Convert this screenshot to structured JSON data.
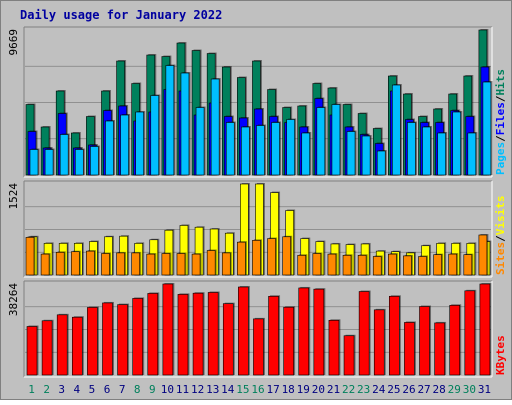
{
  "chart_data": {
    "type": "bar",
    "title": "Daily usage for January 2022",
    "categories": [
      "1",
      "2",
      "3",
      "4",
      "5",
      "6",
      "7",
      "8",
      "9",
      "10",
      "11",
      "12",
      "13",
      "14",
      "15",
      "16",
      "17",
      "18",
      "19",
      "20",
      "21",
      "22",
      "23",
      "24",
      "25",
      "26",
      "27",
      "28",
      "29",
      "30",
      "31"
    ],
    "weekend_days": [
      "1",
      "2",
      "8",
      "9",
      "15",
      "16",
      "22",
      "23",
      "29",
      "30"
    ],
    "panels": [
      {
        "id": "hits-files-pages",
        "ymax_label": "9669",
        "ymax": 9669,
        "gridlines": [
          0.25,
          0.5,
          0.75
        ],
        "legend": [
          "Pages",
          "/",
          "Files",
          "/",
          "Hits"
        ],
        "series": [
          {
            "name": "Hits",
            "color": "#00805c",
            "values": [
              4700,
              3200,
              5600,
              2800,
              3900,
              5600,
              7600,
              6100,
              8000,
              7900,
              8800,
              8300,
              8100,
              7200,
              6500,
              7600,
              5700,
              4500,
              4600,
              6100,
              5800,
              4700,
              4100,
              3100,
              6600,
              5400,
              3900,
              4400,
              5400,
              6600,
              9669
            ]
          },
          {
            "name": "Files",
            "color": "#0000ff",
            "values": [
              2900,
              1800,
              4100,
              1800,
              2000,
              4300,
              4600,
              3600,
              4200,
              5700,
              5600,
              4000,
              4800,
              3900,
              3800,
              4400,
              3900,
              3500,
              3200,
              5100,
              4000,
              3200,
              2700,
              2100,
              5600,
              3700,
              3500,
              3500,
              4300,
              3900,
              7200
            ]
          },
          {
            "name": "Pages",
            "color": "#00bfff",
            "values": [
              1700,
              1700,
              2700,
              1700,
              1900,
              3600,
              4000,
              4200,
              5300,
              7300,
              6800,
              4500,
              6400,
              3500,
              3200,
              3300,
              3500,
              3700,
              2800,
              4500,
              4700,
              2900,
              2600,
              1600,
              6000,
              3500,
              3200,
              2800,
              4200,
              2800,
              6200
            ]
          }
        ]
      },
      {
        "id": "visits-sites",
        "ymax_label": "1524",
        "ymax": 1524,
        "gridlines": [
          0.25,
          0.5,
          0.75
        ],
        "legend": [
          "Sites",
          "/",
          "Visits"
        ],
        "series": [
          {
            "name": "Visits",
            "color": "#ffff00",
            "values": [
              640,
              530,
              530,
              530,
              560,
              640,
              650,
              530,
              590,
              750,
              830,
              800,
              770,
              700,
              1524,
              1524,
              1380,
              1080,
              610,
              560,
              520,
              510,
              520,
              400,
              390,
              370,
              490,
              530,
              530,
              530,
              560
            ]
          },
          {
            "name": "Sites",
            "color": "#ff8800",
            "values": [
              630,
              350,
              380,
              390,
              400,
              360,
              370,
              370,
              350,
              360,
              360,
              350,
              410,
              370,
              550,
              580,
              610,
              640,
              330,
              360,
              350,
              330,
              330,
              310,
              350,
              320,
              310,
              340,
              350,
              340,
              670
            ]
          }
        ]
      },
      {
        "id": "kbytes",
        "ymax_label": "38264",
        "ymax": 38264,
        "gridlines": [
          0.25,
          0.5,
          0.75
        ],
        "legend": [
          "KBytes"
        ],
        "series": [
          {
            "name": "KBytes",
            "color": "#ff0000",
            "values": [
              20400,
              22800,
              25300,
              24300,
              28400,
              30300,
              29600,
              32200,
              34300,
              38264,
              33900,
              34400,
              34700,
              30000,
              37000,
              23600,
              33100,
              28500,
              36600,
              36100,
              23000,
              16500,
              35100,
              27400,
              33100,
              22100,
              28800,
              21900,
              29300,
              35400,
              38264
            ]
          }
        ]
      }
    ]
  }
}
